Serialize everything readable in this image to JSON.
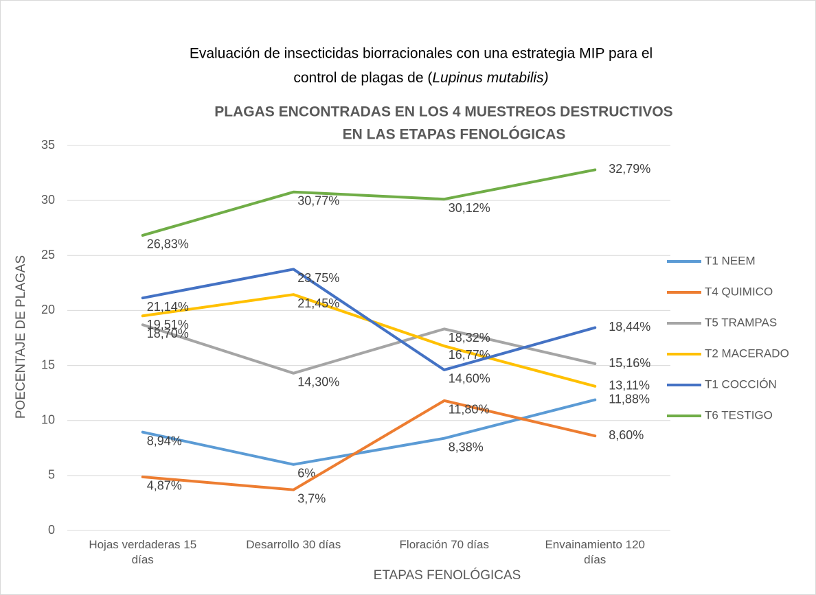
{
  "chart_data": {
    "type": "line",
    "title": {
      "line1": "Evaluación de insecticidas biorracionales con una estrategia MIP para el",
      "line2": "control de plagas de (",
      "italic": "Lupinus mutabilis)"
    },
    "subtitle": [
      "PLAGAS ENCONTRADAS EN LOS 4 MUESTREOS DESTRUCTIVOS",
      "EN LAS ETAPAS FENOLÓGICAS"
    ],
    "x_label": "ETAPAS FENOLÓGICAS",
    "y_label": "POECENTAJE DE PLAGAS",
    "categories": [
      "Hojas verdaderas 15 días",
      "Desarrollo 30 días",
      "Floración 70 días",
      "Envainamiento 120 días"
    ],
    "ylim": [
      0,
      35
    ],
    "yticks": [
      0,
      5,
      10,
      15,
      20,
      25,
      30,
      35
    ],
    "grid": true,
    "legend": "right",
    "series": [
      {
        "name": "T1 NEEM",
        "color": "#5b9bd5",
        "values": [
          8.94,
          6,
          8.38,
          11.88
        ],
        "value_labels": [
          "8,94%",
          "6%",
          "8,38%",
          "11,88%"
        ]
      },
      {
        "name": "T4 QUIMICO",
        "color": "#ed7d31",
        "values": [
          4.87,
          3.7,
          11.8,
          8.6
        ],
        "value_labels": [
          "4,87%",
          "3,7%",
          "11,80%",
          "8,60%"
        ]
      },
      {
        "name": "T5 TRAMPAS",
        "color": "#a5a5a5",
        "values": [
          18.7,
          14.3,
          18.32,
          15.16
        ],
        "value_labels": [
          "18,70%",
          "14,30%",
          "18,32%",
          "15,16%"
        ]
      },
      {
        "name": "T2 MACERADO",
        "color": "#ffc000",
        "values": [
          19.51,
          21.45,
          16.77,
          13.11
        ],
        "value_labels": [
          "19,51%",
          "21,45%",
          "16,77%",
          "13,11%"
        ]
      },
      {
        "name": "T1 COCCIÓN",
        "color": "#4472c4",
        "values": [
          21.14,
          23.75,
          14.6,
          18.44
        ],
        "value_labels": [
          "21,14%",
          "23,75%",
          "14,60%",
          "18,44%"
        ]
      },
      {
        "name": "T6 TESTIGO",
        "color": "#70ad47",
        "values": [
          26.83,
          30.77,
          30.12,
          32.79
        ],
        "value_labels": [
          "26,83%",
          "30,77%",
          "30,12%",
          "32,79%"
        ]
      }
    ]
  }
}
